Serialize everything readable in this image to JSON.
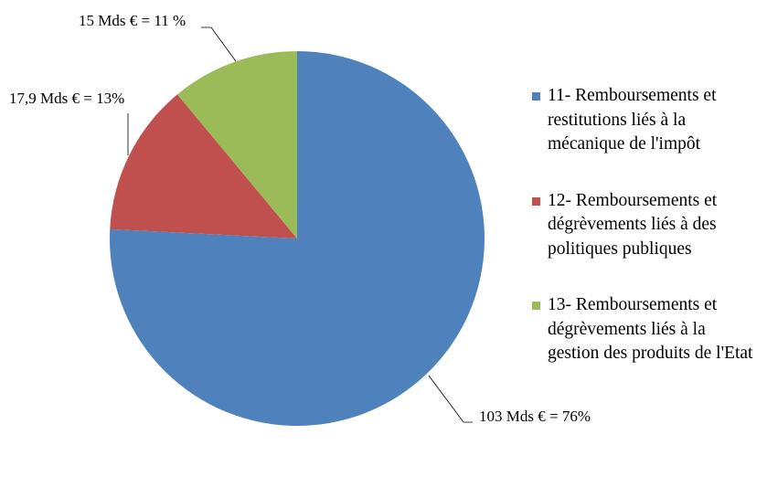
{
  "chart_data": {
    "type": "pie",
    "start_angle": "12 o'clock",
    "direction": "clockwise",
    "slices": [
      {
        "label": "11- Remboursements et restitutions liés à la mécanique de l'impôt",
        "value": 103,
        "percent": 76,
        "data_label": "103 Mds € = 76%",
        "color": "#4F81BD"
      },
      {
        "label": "12- Remboursements et dégrèvements liés à des politiques publiques",
        "value": 17.9,
        "percent": 13,
        "data_label": "17,9 Mds € = 13%",
        "color": "#C0504D"
      },
      {
        "label": "13- Remboursements et dégrèvements liés à la gestion des produits de l'Etat",
        "value": 15,
        "percent": 11,
        "data_label": "15 Mds € = 11 %",
        "color": "#9BBB59"
      }
    ],
    "legend": "right"
  }
}
